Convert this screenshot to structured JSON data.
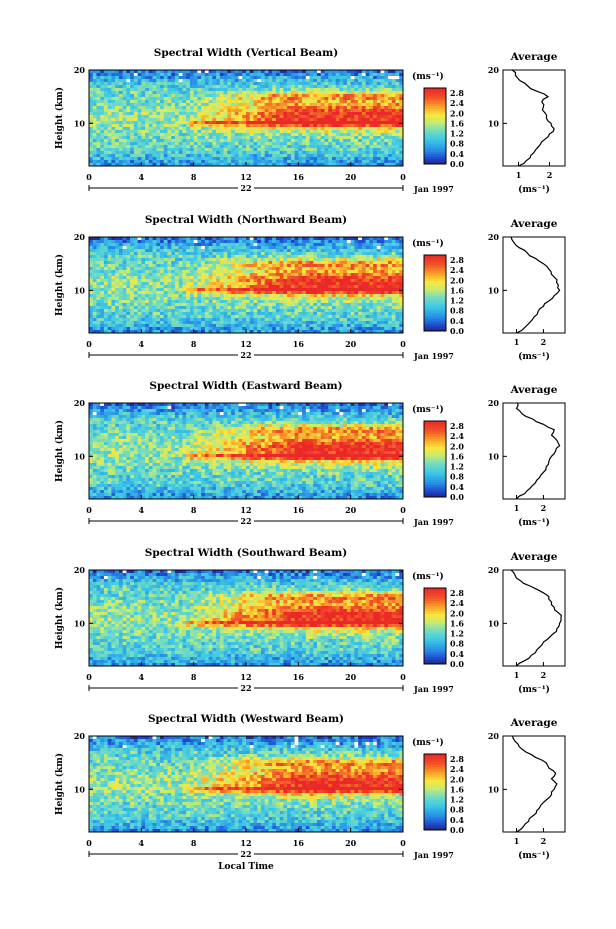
{
  "chart_data": [
    {
      "type": "heatmap",
      "title": "Spectral Width (Vertical Beam)",
      "ylabel": "Height (km)",
      "x_ticks": [
        "0",
        "4",
        "8",
        "12",
        "16",
        "20",
        "0"
      ],
      "y_ticks": [
        "10",
        "20"
      ],
      "ylim": [
        2,
        20
      ],
      "xlim": [
        0,
        24
      ],
      "day": "22",
      "month_label": "Jan 1997",
      "colorbar": {
        "unit": "(ms⁻¹)",
        "ticks": [
          "2.8",
          "2.4",
          "2.0",
          "1.6",
          "1.2",
          "0.8",
          "0.4",
          "0.0"
        ],
        "range": [
          0,
          3
        ]
      },
      "average_profile": {
        "title": "Average",
        "xlabel": "(ms⁻¹)",
        "x_ticks": [
          "1",
          "2"
        ],
        "xlim": [
          0.5,
          2.5
        ],
        "heights": [
          2,
          3,
          4,
          5,
          6,
          7,
          8,
          9,
          10,
          11,
          12,
          13,
          14,
          15,
          16,
          17,
          18,
          19,
          20
        ],
        "values": [
          1.0,
          1.25,
          1.4,
          1.55,
          1.7,
          1.85,
          2.0,
          2.15,
          2.05,
          1.9,
          1.85,
          1.8,
          1.75,
          1.95,
          1.6,
          1.3,
          1.05,
          0.9,
          0.8
        ]
      }
    },
    {
      "type": "heatmap",
      "title": "Spectral Width (Northward Beam)",
      "ylabel": "Height (km)",
      "x_ticks": [
        "0",
        "4",
        "8",
        "12",
        "16",
        "20",
        "0"
      ],
      "y_ticks": [
        "10",
        "20"
      ],
      "ylim": [
        2,
        20
      ],
      "xlim": [
        0,
        24
      ],
      "day": "22",
      "month_label": "Jan 1997",
      "colorbar": {
        "unit": "(ms⁻¹)",
        "ticks": [
          "2.8",
          "2.4",
          "2.0",
          "1.6",
          "1.2",
          "0.8",
          "0.4",
          "0.0"
        ],
        "range": [
          0,
          3
        ]
      },
      "average_profile": {
        "title": "Average",
        "xlabel": "(ms⁻¹)",
        "x_ticks": [
          "1",
          "2"
        ],
        "xlim": [
          0.5,
          2.8
        ],
        "heights": [
          2,
          3,
          4,
          5,
          6,
          7,
          8,
          9,
          10,
          11,
          12,
          13,
          14,
          15,
          16,
          17,
          18,
          19,
          20
        ],
        "values": [
          1.0,
          1.3,
          1.5,
          1.65,
          1.8,
          2.0,
          2.2,
          2.4,
          2.6,
          2.55,
          2.5,
          2.3,
          2.2,
          2.0,
          1.7,
          1.4,
          1.1,
          0.9,
          0.8
        ]
      }
    },
    {
      "type": "heatmap",
      "title": "Spectral Width (Eastward Beam)",
      "ylabel": "Height (km)",
      "x_ticks": [
        "0",
        "4",
        "8",
        "12",
        "16",
        "20",
        "0"
      ],
      "y_ticks": [
        "10",
        "20"
      ],
      "ylim": [
        2,
        20
      ],
      "xlim": [
        0,
        24
      ],
      "day": "22",
      "month_label": "Jan 1997",
      "colorbar": {
        "unit": "(ms⁻¹)",
        "ticks": [
          "2.8",
          "2.4",
          "2.0",
          "1.6",
          "1.2",
          "0.8",
          "0.4",
          "0.0"
        ],
        "range": [
          0,
          3
        ]
      },
      "average_profile": {
        "title": "Average",
        "xlabel": "(ms⁻¹)",
        "x_ticks": [
          "1",
          "2"
        ],
        "xlim": [
          0.5,
          2.8
        ],
        "heights": [
          2,
          3,
          4,
          5,
          6,
          7,
          8,
          9,
          10,
          11,
          12,
          13,
          14,
          15,
          16,
          17,
          18,
          19,
          20
        ],
        "values": [
          1.0,
          1.3,
          1.5,
          1.7,
          1.85,
          2.0,
          2.1,
          2.2,
          2.3,
          2.45,
          2.6,
          2.5,
          2.3,
          2.4,
          2.0,
          1.6,
          1.2,
          1.0,
          1.05
        ]
      }
    },
    {
      "type": "heatmap",
      "title": "Spectral Width (Southward Beam)",
      "ylabel": "Height (km)",
      "x_ticks": [
        "0",
        "4",
        "8",
        "12",
        "16",
        "20",
        "0"
      ],
      "y_ticks": [
        "10",
        "20"
      ],
      "ylim": [
        2,
        20
      ],
      "xlim": [
        0,
        24
      ],
      "day": "22",
      "month_label": "Jan 1997",
      "colorbar": {
        "unit": "(ms⁻¹)",
        "ticks": [
          "2.8",
          "2.4",
          "2.0",
          "1.6",
          "1.2",
          "0.8",
          "0.4",
          "0.0"
        ],
        "range": [
          0,
          3
        ]
      },
      "average_profile": {
        "title": "Average",
        "xlabel": "(ms⁻¹)",
        "x_ticks": [
          "1",
          "2"
        ],
        "xlim": [
          0.5,
          2.8
        ],
        "heights": [
          2,
          3,
          4,
          5,
          6,
          7,
          8,
          9,
          10,
          11,
          12,
          13,
          14,
          15,
          16,
          17,
          18,
          19,
          20
        ],
        "values": [
          1.0,
          1.3,
          1.55,
          1.75,
          1.95,
          2.15,
          2.35,
          2.5,
          2.6,
          2.65,
          2.55,
          2.4,
          2.3,
          2.2,
          1.9,
          1.5,
          1.15,
          0.95,
          0.8
        ]
      }
    },
    {
      "type": "heatmap",
      "title": "Spectral Width (Westward Beam)",
      "ylabel": "Height (km)",
      "x_ticks": [
        "0",
        "4",
        "8",
        "12",
        "16",
        "20",
        "0"
      ],
      "y_ticks": [
        "10",
        "20"
      ],
      "ylim": [
        2,
        20
      ],
      "xlim": [
        0,
        24
      ],
      "day": "22",
      "month_label": "Jan 1997",
      "xlabel": "Local Time",
      "colorbar": {
        "unit": "(ms⁻¹)",
        "ticks": [
          "2.8",
          "2.4",
          "2.0",
          "1.6",
          "1.2",
          "0.8",
          "0.4",
          "0.0"
        ],
        "range": [
          0,
          3
        ]
      },
      "average_profile": {
        "title": "Average",
        "xlabel": "(ms⁻¹)",
        "x_ticks": [
          "1",
          "2"
        ],
        "xlim": [
          0.5,
          2.8
        ],
        "heights": [
          2,
          3,
          4,
          5,
          6,
          7,
          8,
          9,
          10,
          11,
          12,
          13,
          14,
          15,
          16,
          17,
          18,
          19,
          20
        ],
        "values": [
          1.0,
          1.25,
          1.45,
          1.6,
          1.75,
          1.9,
          2.1,
          2.3,
          2.4,
          2.5,
          2.3,
          2.45,
          2.2,
          2.1,
          1.7,
          1.35,
          1.1,
          0.95,
          0.85
        ]
      }
    }
  ]
}
